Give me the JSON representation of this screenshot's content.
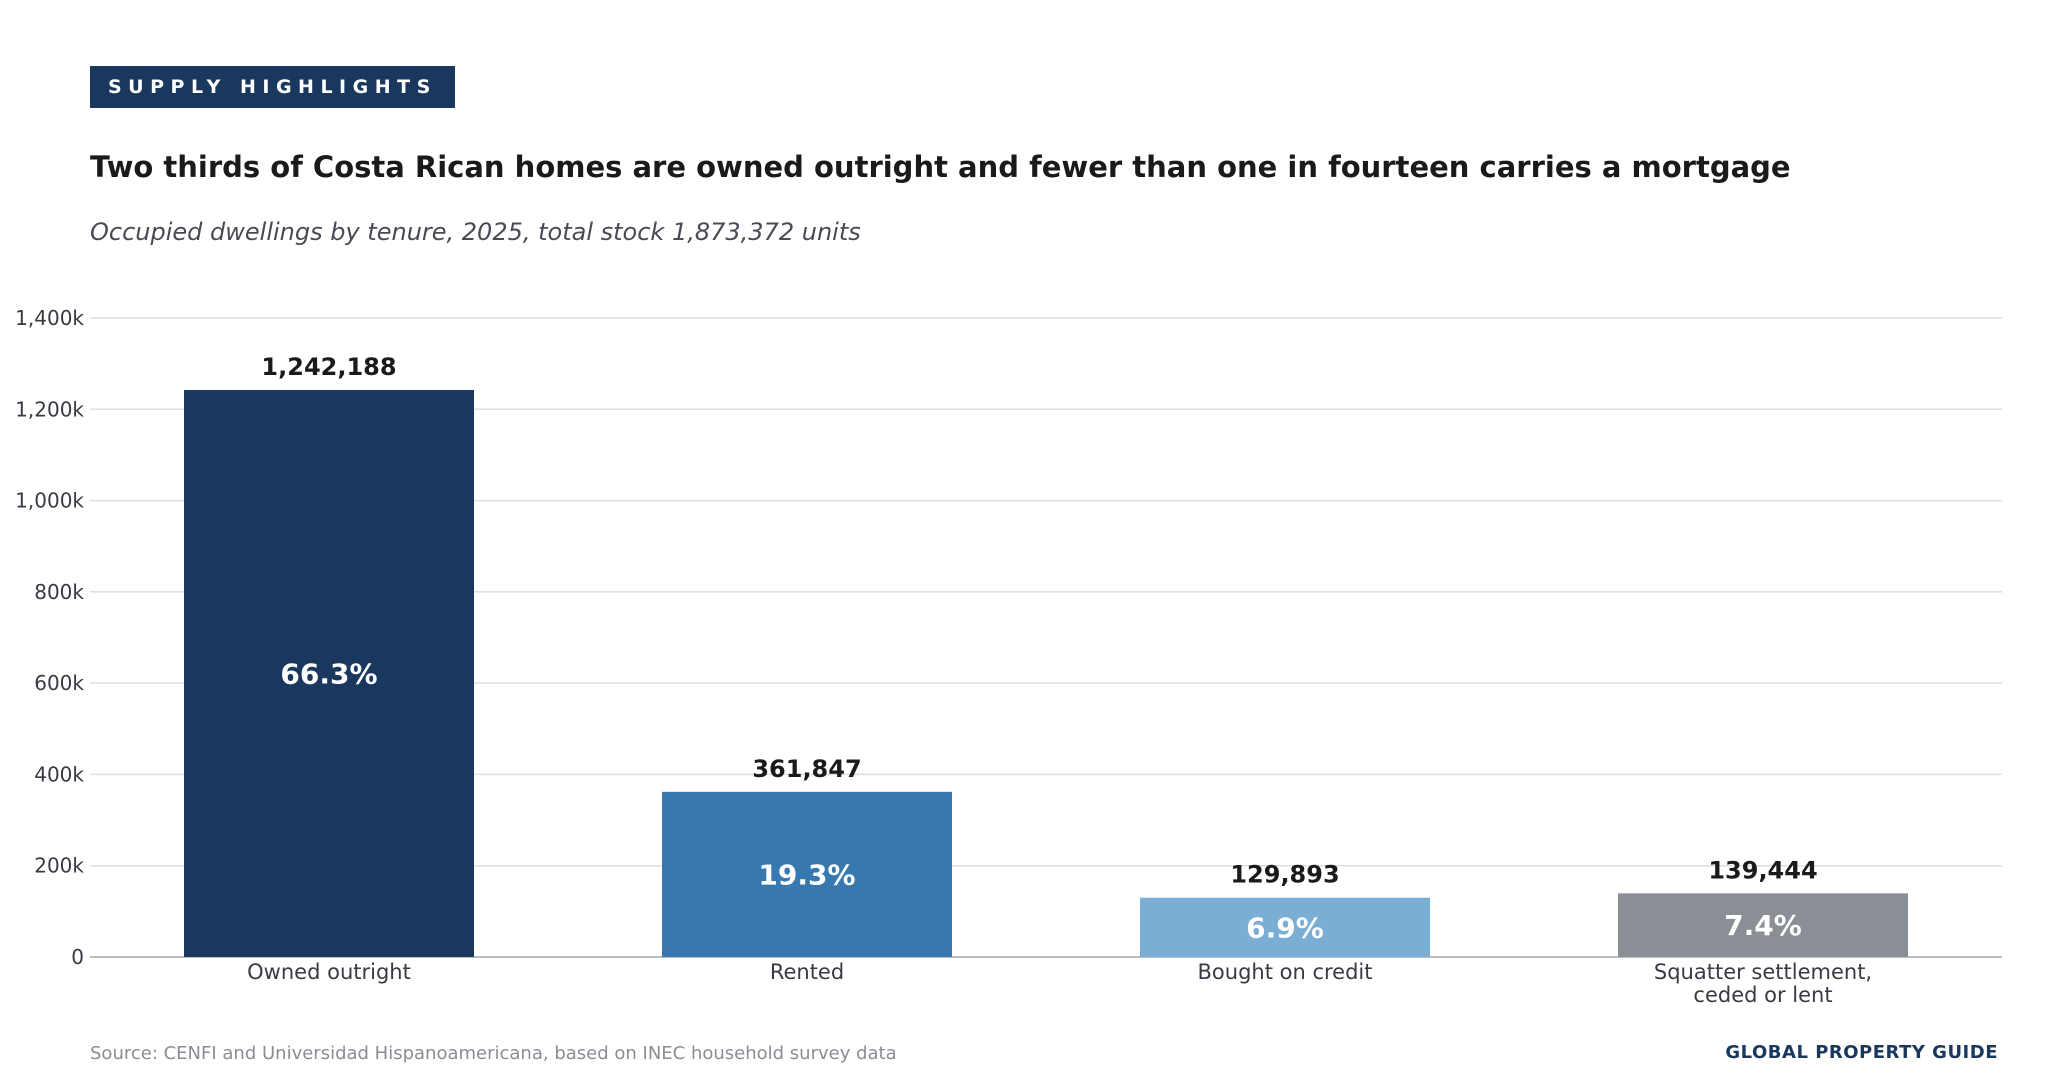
{
  "header": {
    "badge": "SUPPLY HIGHLIGHTS",
    "title": "Two thirds of Costa Rican homes are owned outright and fewer than one in fourteen carries a mortgage",
    "subtitle": "Occupied dwellings by tenure, 2025, total stock 1,873,372 units"
  },
  "footer": {
    "source": "Source: CENFI and Universidad Hispanoamericana, based on INEC household survey data",
    "brand": "GLOBAL PROPERTY GUIDE"
  },
  "chart_data": {
    "type": "bar",
    "title": "Two thirds of Costa Rican homes are owned outright and fewer than one in fourteen carries a mortgage",
    "subtitle": "Occupied dwellings by tenure, 2025, total stock 1,873,372 units",
    "xlabel": "",
    "ylabel": "",
    "categories": [
      [
        "Owned outright"
      ],
      [
        "Rented"
      ],
      [
        "Bought on credit"
      ],
      [
        "Squatter settlement,",
        "ceded or lent"
      ]
    ],
    "values": [
      1242188,
      361847,
      129893,
      139444
    ],
    "value_labels": [
      "1,242,188",
      "361,847",
      "129,893",
      "139,444"
    ],
    "share_labels": [
      "66.3%",
      "19.3%",
      "6.9%",
      "7.4%"
    ],
    "colors": [
      "#1a375d",
      "#3778ae",
      "#7aaed5",
      "#8a8e95"
    ],
    "ylim": [
      0,
      1400000
    ],
    "yticks": [
      0,
      200000,
      400000,
      600000,
      800000,
      1000000,
      1200000,
      1400000
    ],
    "ytick_labels": [
      "0",
      "200k",
      "400k",
      "600k",
      "800k",
      "1,000k",
      "1,200k",
      "1,400k"
    ],
    "grid": true,
    "legend": "none"
  }
}
